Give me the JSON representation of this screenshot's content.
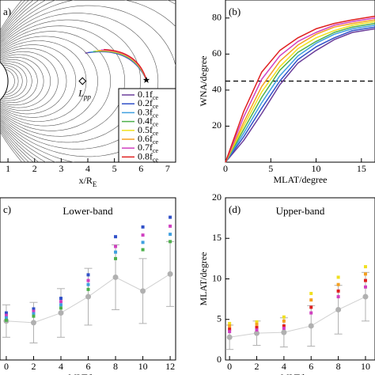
{
  "chart_data": [
    {
      "type": "field-lines",
      "panel_label": "a)",
      "xlabel": {
        "text": "x/R",
        "sub": "E"
      },
      "xlim": [
        0.7,
        7.3
      ],
      "xticks": [
        1,
        2,
        3,
        4,
        5,
        6,
        7
      ],
      "annotation": {
        "text": "L",
        "sub": "pp"
      },
      "legend_subscript": "ce",
      "series": [
        {
          "name": "0.1f",
          "color": "#6a3d9a"
        },
        {
          "name": "0.2f",
          "color": "#3050c8"
        },
        {
          "name": "0.3f",
          "color": "#3fa0e0"
        },
        {
          "name": "0.4f",
          "color": "#4db04a"
        },
        {
          "name": "0.5f",
          "color": "#f0e020"
        },
        {
          "name": "0.6f",
          "color": "#f5a020"
        },
        {
          "name": "0.7f",
          "color": "#d040c0"
        },
        {
          "name": "0.8f",
          "color": "#e02020"
        }
      ]
    },
    {
      "type": "line",
      "panel_label": "(b)",
      "xlabel": "MLAT/degree",
      "ylabel": "WNA/degree",
      "xlim": [
        0,
        16.5
      ],
      "ylim": [
        0,
        90
      ],
      "xticks": [
        0,
        5,
        10,
        15
      ],
      "yticks": [
        20,
        40,
        60,
        80
      ],
      "reference_line": 45,
      "x": [
        0,
        2,
        4,
        6,
        8,
        10,
        12,
        14,
        16.5
      ],
      "series": [
        {
          "color": "#6a3d9a",
          "values": [
            0,
            12,
            27,
            43,
            55,
            62,
            68,
            72,
            74
          ]
        },
        {
          "color": "#3050c8",
          "values": [
            0,
            14,
            30,
            45,
            57,
            64,
            69,
            73,
            75
          ]
        },
        {
          "color": "#3fa0e0",
          "values": [
            0,
            16,
            33,
            48,
            59,
            66,
            71,
            74,
            76
          ]
        },
        {
          "color": "#4db04a",
          "values": [
            0,
            18,
            36,
            51,
            61,
            67,
            72,
            75,
            77
          ]
        },
        {
          "color": "#f0e020",
          "values": [
            0,
            20,
            39,
            53,
            63,
            69,
            73,
            76,
            78
          ]
        },
        {
          "color": "#f5a020",
          "values": [
            0,
            22,
            42,
            56,
            65,
            71,
            75,
            77,
            79
          ]
        },
        {
          "color": "#d040c0",
          "values": [
            0,
            25,
            46,
            59,
            67,
            72,
            76,
            78,
            80
          ]
        },
        {
          "color": "#e02020",
          "values": [
            0,
            28,
            50,
            62,
            69,
            74,
            77,
            79,
            81
          ]
        }
      ]
    },
    {
      "type": "scatter-error",
      "panel_label": "c)",
      "title": "Lower-band",
      "xlabel": "MLT/hour",
      "xlim": [
        -0.46,
        12.4
      ],
      "ylim": [
        0,
        20
      ],
      "xticks": [
        0,
        2,
        4,
        6,
        8,
        10,
        12
      ],
      "x": [
        0,
        2,
        4,
        6,
        8,
        10,
        12
      ],
      "mean": {
        "color": "#b0b0b0",
        "values": [
          4.8,
          4.6,
          5.8,
          7.8,
          10.2,
          8.5,
          10.6
        ],
        "errors": [
          2,
          2.5,
          3,
          3.5,
          4,
          4,
          4
        ]
      },
      "series": [
        {
          "color": "#3050c8",
          "values": [
            5.8,
            6.3,
            7.6,
            10.5,
            15.2,
            16.4,
            17.6
          ]
        },
        {
          "color": "#d040c0",
          "values": [
            5.5,
            6.0,
            7.2,
            9.8,
            14.0,
            15.4,
            16.5
          ]
        },
        {
          "color": "#3fa0e0",
          "values": [
            5.2,
            5.7,
            6.8,
            9.3,
            13.3,
            14.5,
            15.5
          ]
        },
        {
          "color": "#4db04a",
          "values": [
            4.9,
            5.4,
            6.4,
            8.7,
            12.5,
            13.6,
            14.6
          ]
        }
      ]
    },
    {
      "type": "scatter-error",
      "panel_label": "(d)",
      "title": "Upper-band",
      "xlabel": "MLT/hour",
      "ylabel": "MLAT/degree",
      "xlim": [
        -0.3,
        10.7
      ],
      "ylim": [
        0,
        20
      ],
      "xticks": [
        0,
        2,
        4,
        6,
        8,
        10
      ],
      "yticks": [
        0,
        5,
        10,
        15,
        20
      ],
      "x": [
        0,
        2,
        4,
        6,
        8,
        10
      ],
      "mean": {
        "color": "#b0b0b0",
        "values": [
          2.8,
          3.3,
          3.4,
          4.2,
          6.2,
          7.8
        ],
        "errors": [
          1.5,
          1.5,
          1.8,
          2.5,
          3,
          3
        ]
      },
      "series": [
        {
          "color": "#f0e020",
          "values": [
            4.5,
            4.7,
            5.3,
            8.2,
            10.2,
            11.5
          ]
        },
        {
          "color": "#f5a020",
          "values": [
            4.2,
            4.4,
            4.8,
            7.4,
            9.3,
            10.6
          ]
        },
        {
          "color": "#e02020",
          "values": [
            3.8,
            4.0,
            4.2,
            6.5,
            8.5,
            9.8
          ]
        },
        {
          "color": "#d040c0",
          "values": [
            3.5,
            3.7,
            3.9,
            5.8,
            7.8,
            9.0
          ]
        }
      ]
    }
  ]
}
